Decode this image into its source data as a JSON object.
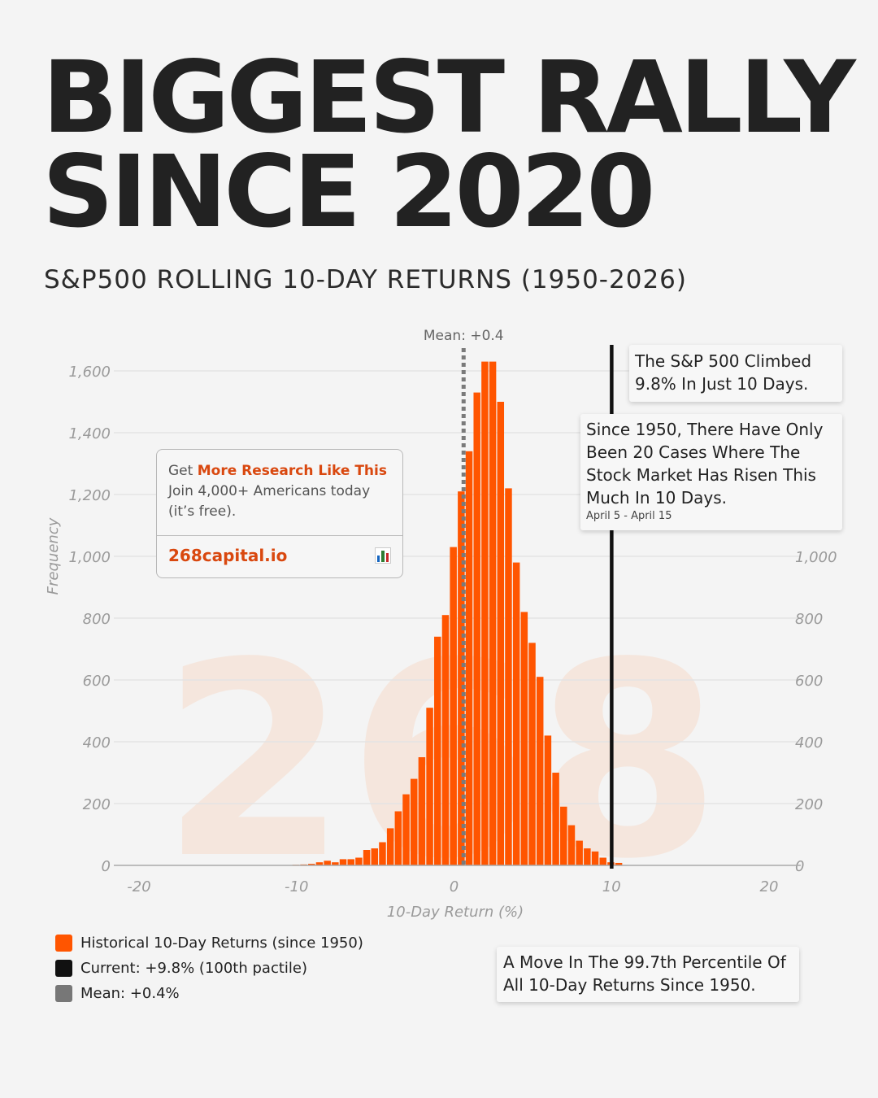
{
  "header": {
    "title_line1": "BIGGEST RALLY",
    "title_line2": "SINCE 2020",
    "subtitle": "S&P500 ROLLING 10-DAY RETURNS (1950-2026)"
  },
  "colors": {
    "bars": "#ff5500",
    "current": "#111111",
    "mean": "#7a7a7a",
    "accent": "#d9480f"
  },
  "chart_data": {
    "type": "bar",
    "title": "S&P500 ROLLING 10-DAY RETURNS (1950-2026)",
    "xlabel": "10-Day Return (%)",
    "ylabel": "Frequency",
    "xlim": [
      -20,
      20
    ],
    "ylim": [
      0,
      1700
    ],
    "x_ticks": [
      -20,
      -10,
      0,
      10,
      20
    ],
    "x_tick_labels": [
      "-20",
      "-10",
      "0",
      "10",
      "20"
    ],
    "y_ticks": [
      0,
      200,
      400,
      600,
      800,
      1000,
      1200,
      1400,
      1600
    ],
    "y_tick_labels_left": [
      "0",
      "200",
      "400",
      "600",
      "800",
      "1,000",
      "1,200",
      "1,400",
      "1,600"
    ],
    "y_tick_labels_right": [
      "0",
      "200",
      "400",
      "600",
      "800",
      "1,000"
    ],
    "bin_width": 0.5,
    "bin_starts": [
      -10.5,
      -10,
      -9.5,
      -9,
      -8.5,
      -8,
      -7.5,
      -7,
      -6.5,
      -6,
      -5.5,
      -5,
      -4.5,
      -4,
      -3.5,
      -3,
      -2.5,
      -2,
      -1.5,
      -1,
      -0.5,
      0,
      0.5,
      1,
      1.5,
      2,
      2.5,
      3,
      3.5,
      4,
      4.5,
      5,
      5.5,
      6,
      6.5,
      7,
      7.5,
      8,
      8.5,
      9,
      9.5,
      10
    ],
    "values": [
      2,
      3,
      5,
      10,
      15,
      10,
      20,
      20,
      25,
      50,
      55,
      75,
      120,
      175,
      230,
      280,
      350,
      510,
      740,
      810,
      1030,
      1210,
      1340,
      1530,
      1630,
      1630,
      1500,
      1220,
      980,
      820,
      720,
      610,
      420,
      300,
      190,
      130,
      80,
      55,
      45,
      25,
      10,
      8
    ],
    "mean": 0.4,
    "mean_label": "Mean: +0.4",
    "current": 9.8,
    "watermark": "268",
    "legend": [
      {
        "label": "Historical 10-Day Returns (since 1950)",
        "color": "#ff5500"
      },
      {
        "label": "Current: +9.8% (100th pactile)",
        "color": "#111111"
      },
      {
        "label": "Mean: +0.4%",
        "color": "#777777"
      }
    ]
  },
  "callouts": {
    "climbed": "The S&P 500 Climbed 9.8% In Just 10 Days.",
    "cases": "Since 1950, There Have Only Been 20 Cases Where The Stock Market Has Risen This Much In 10 Days.",
    "cases_date": "April 5 - April 15",
    "percentile": "A Move In The 99.7th Percentile Of All 10-Day Returns Since 1950."
  },
  "promo": {
    "get": "Get",
    "highlight": "More Research Like This",
    "body": "Join 4,000+ Americans today (it’s free).",
    "link": "268capital.io",
    "icon": "bar-chart-icon"
  }
}
